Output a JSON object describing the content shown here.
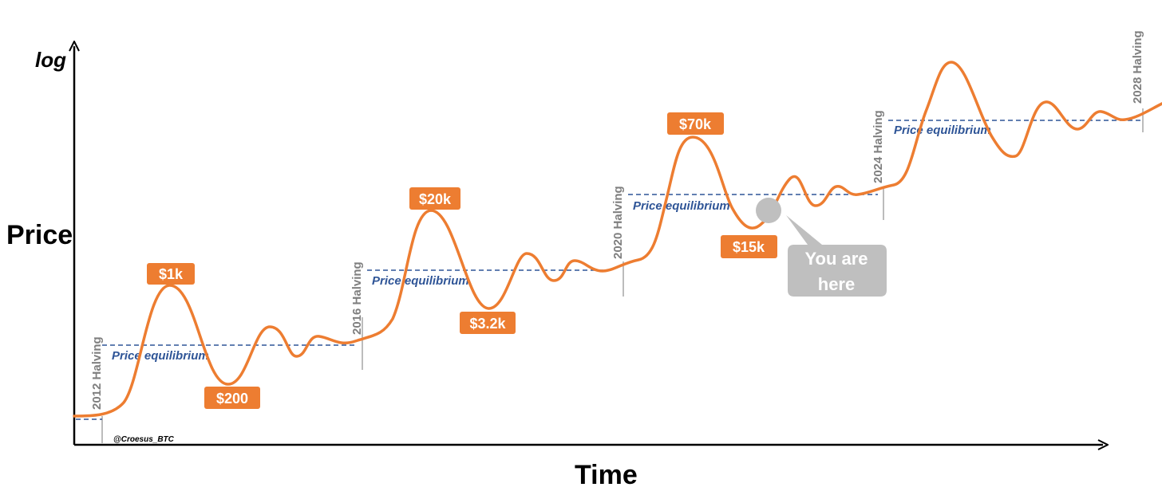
{
  "chart_data": {
    "type": "line",
    "xlabel": "Time",
    "ylabel": "Price",
    "y_scale_label": "log",
    "credit": "@Croesus_BTC",
    "colors": {
      "curve": "#ed7d31",
      "price_box": "#ed7d31",
      "equilibrium": "#2f5597",
      "halving_line": "#a6a6a6",
      "bubble": "#bfbfbf"
    },
    "halvings": [
      "2012 Halving",
      "2016 Halving",
      "2020 Halving",
      "2024 Halving",
      "2028 Halving"
    ],
    "equilibrium_label": "Price equilibrium",
    "annotations": [
      {
        "label": "$1k",
        "kind": "peak",
        "cycle": 1
      },
      {
        "label": "$200",
        "kind": "bottom",
        "cycle": 1
      },
      {
        "label": "$20k",
        "kind": "peak",
        "cycle": 2
      },
      {
        "label": "$3.2k",
        "kind": "bottom",
        "cycle": 2
      },
      {
        "label": "$70k",
        "kind": "peak",
        "cycle": 3
      },
      {
        "label": "$15k",
        "kind": "bottom",
        "cycle": 3
      }
    ],
    "marker": {
      "line1": "You are",
      "line2": "here"
    }
  }
}
